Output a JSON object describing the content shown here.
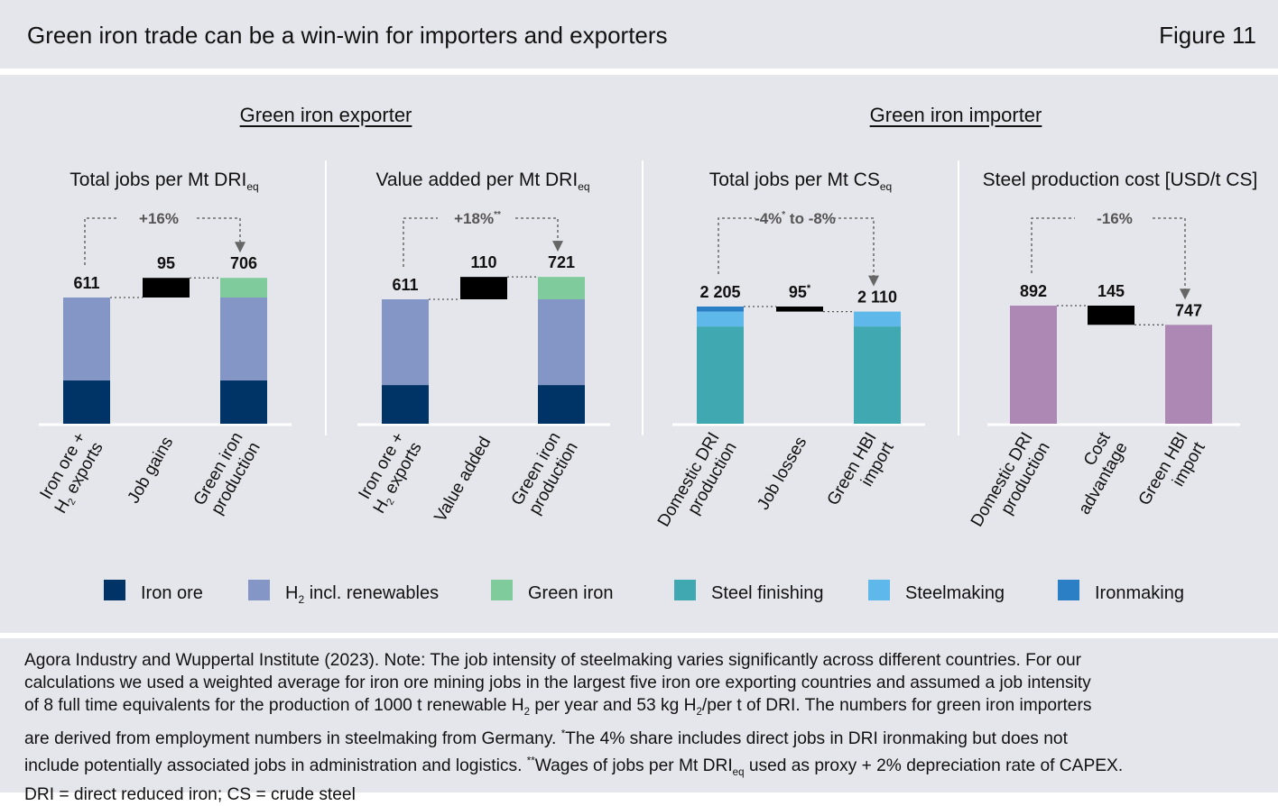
{
  "header": {
    "title": "Green iron trade can be a win-win for importers and exporters",
    "figure_label": "Figure 11"
  },
  "sections": {
    "exporter": "Green iron exporter",
    "importer": "Green iron importer"
  },
  "colors": {
    "iron_ore": "#003366",
    "h2_renewables": "#8496c5",
    "green_iron": "#7fcb9c",
    "steel_finishing": "#3fa8b0",
    "steelmaking": "#5fb8ea",
    "ironmaking": "#2a7fc5",
    "cost": "#ad88b5",
    "delta": "#000000",
    "background": "#e5e6eb"
  },
  "chart_data": [
    {
      "type": "bar",
      "subtype": "waterfall",
      "title": "Total jobs per Mt DRI",
      "title_subscript": "eq",
      "categories": [
        "Iron ore + H2 exports",
        "Job gains",
        "Green iron production"
      ],
      "series": [
        {
          "name": "Iron ore",
          "values": [
            210,
            null,
            210
          ]
        },
        {
          "name": "H2 incl. renewables",
          "values": [
            401,
            null,
            401
          ]
        },
        {
          "name": "Green iron",
          "values": [
            null,
            null,
            95
          ]
        }
      ],
      "delta": {
        "category": "Job gains",
        "value": 95,
        "direction": "up"
      },
      "totals": [
        611,
        95,
        706
      ],
      "total_labels": [
        "611",
        "95",
        "706"
      ],
      "annotation": "+16%",
      "ylim": [
        0,
        780
      ]
    },
    {
      "type": "bar",
      "subtype": "waterfall",
      "title": "Value added per Mt DRI",
      "title_subscript": "eq",
      "categories": [
        "Iron ore + H2 exports",
        "Value added",
        "Green iron production"
      ],
      "series": [
        {
          "name": "Iron ore",
          "values": [
            190,
            null,
            190
          ]
        },
        {
          "name": "H2 incl. renewables",
          "values": [
            421,
            null,
            421
          ]
        },
        {
          "name": "Green iron",
          "values": [
            null,
            null,
            110
          ]
        }
      ],
      "delta": {
        "category": "Value added",
        "value": 110,
        "direction": "up"
      },
      "totals": [
        611,
        110,
        721
      ],
      "total_labels": [
        "611",
        "110",
        "721"
      ],
      "annotation": "+18%",
      "annotation_sup": "**",
      "ylim": [
        0,
        780
      ]
    },
    {
      "type": "bar",
      "subtype": "waterfall",
      "title": "Total jobs per Mt CS",
      "title_subscript": "eq",
      "categories": [
        "Domestic DRI production",
        "Job losses",
        "Green HBI import"
      ],
      "series": [
        {
          "name": "Steel finishing",
          "values": [
            1830,
            null,
            1830
          ]
        },
        {
          "name": "Steelmaking",
          "values": [
            280,
            null,
            280
          ]
        },
        {
          "name": "Ironmaking",
          "values": [
            95,
            null,
            null
          ]
        }
      ],
      "delta": {
        "category": "Job losses",
        "value": 95,
        "direction": "down"
      },
      "totals": [
        2205,
        95,
        2110
      ],
      "total_labels": [
        "2 205",
        "95",
        "2 110"
      ],
      "delta_label_sup": "*",
      "annotation": "-4% to -8%",
      "annotation_parts": [
        "-4%",
        "*",
        " to -8%"
      ],
      "ylim": [
        0,
        2700
      ]
    },
    {
      "type": "bar",
      "subtype": "waterfall",
      "title": "Steel production cost [USD/t CS]",
      "categories": [
        "Domestic DRI production",
        "Cost advantage",
        "Green HBI import"
      ],
      "series": [
        {
          "name": "Cost",
          "values": [
            892,
            null,
            747
          ]
        }
      ],
      "delta": {
        "category": "Cost advantage",
        "value": 145,
        "direction": "down"
      },
      "totals": [
        892,
        145,
        747
      ],
      "total_labels": [
        "892",
        "145",
        "747"
      ],
      "annotation": "-16%",
      "ylim": [
        0,
        1090
      ]
    }
  ],
  "category_labels": [
    [
      [
        "Iron ore +",
        "H2 exports"
      ],
      [
        "Job gains"
      ],
      [
        "Green iron",
        "production"
      ]
    ],
    [
      [
        "Iron ore +",
        "H2 exports"
      ],
      [
        "Value added"
      ],
      [
        "Green iron",
        "production"
      ]
    ],
    [
      [
        "Domestic DRI",
        "production"
      ],
      [
        "Job losses"
      ],
      [
        "Green HBI",
        "import"
      ]
    ],
    [
      [
        "Domestic DRI",
        "production"
      ],
      [
        "Cost",
        "advantage"
      ],
      [
        "Green HBI",
        "import"
      ]
    ]
  ],
  "legend": [
    {
      "label": "Iron ore",
      "color": "#003366"
    },
    {
      "label": "H2 incl. renewables",
      "color": "#8496c5"
    },
    {
      "label": "Green iron",
      "color": "#7fcb9c"
    },
    {
      "label": "Steel finishing",
      "color": "#3fa8b0"
    },
    {
      "label": "Steelmaking",
      "color": "#5fb8ea"
    },
    {
      "label": "Ironmaking",
      "color": "#2a7fc5"
    }
  ],
  "footer": {
    "lines": [
      "Agora Industry and Wuppertal Institute (2023). Note: The job intensity of steelmaking varies significantly across different countries. For our",
      "calculations we used a weighted average for iron ore mining jobs in the largest five iron ore exporting countries and assumed a job intensity",
      "of 8 full time equivalents for the production of 1000 t renewable H2 per year and 53 kg H2/per t of DRI. The numbers for green iron importers",
      "are derived from employment numbers in steelmaking from Germany. *The 4% share includes direct jobs in DRI ironmaking but does not",
      "include potentially associated jobs in administration and logistics. **Wages of jobs per Mt DRIeq used as proxy + 2% depreciation rate of CAPEX.",
      "DRI = direct reduced iron; CS = crude steel"
    ]
  }
}
